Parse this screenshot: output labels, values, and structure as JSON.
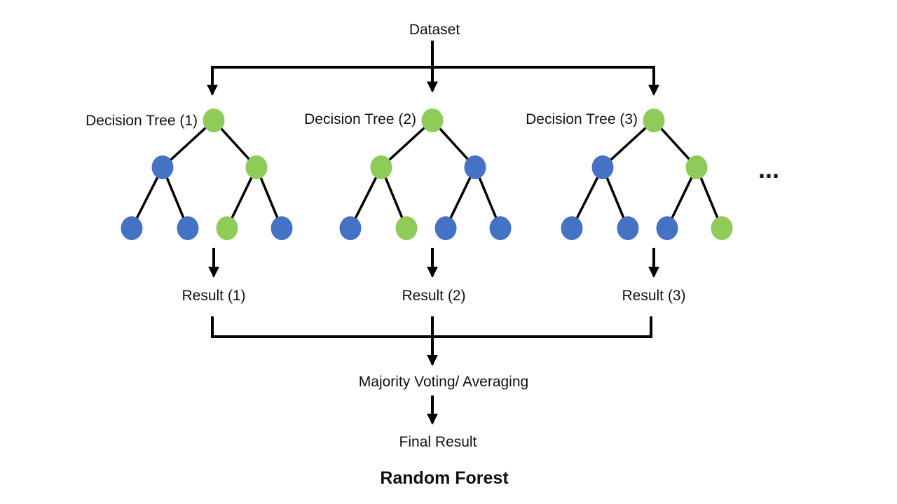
{
  "dataset_label": "Dataset",
  "more_trees_ellipsis": "...",
  "majority_voting_label": "Majority Voting/ Averaging",
  "final_result_label": "Final Result",
  "diagram_title": "Random Forest",
  "colors": {
    "node_blue": "#4472C4",
    "node_green": "#8FCB58",
    "line_black": "#000000"
  },
  "trees": [
    {
      "label": "Decision Tree (1)",
      "result_label": "Result (1)",
      "nodes": {
        "root": "green",
        "level2": [
          "blue",
          "green"
        ],
        "leaves": [
          "blue",
          "blue",
          "green",
          "blue"
        ]
      }
    },
    {
      "label": "Decision Tree (2)",
      "result_label": "Result (2)",
      "nodes": {
        "root": "green",
        "level2": [
          "green",
          "blue"
        ],
        "leaves": [
          "blue",
          "green",
          "blue",
          "blue"
        ]
      }
    },
    {
      "label": "Decision Tree (3)",
      "result_label": "Result (3)",
      "nodes": {
        "root": "green",
        "level2": [
          "blue",
          "green"
        ],
        "leaves": [
          "blue",
          "blue",
          "blue",
          "green"
        ]
      }
    }
  ]
}
